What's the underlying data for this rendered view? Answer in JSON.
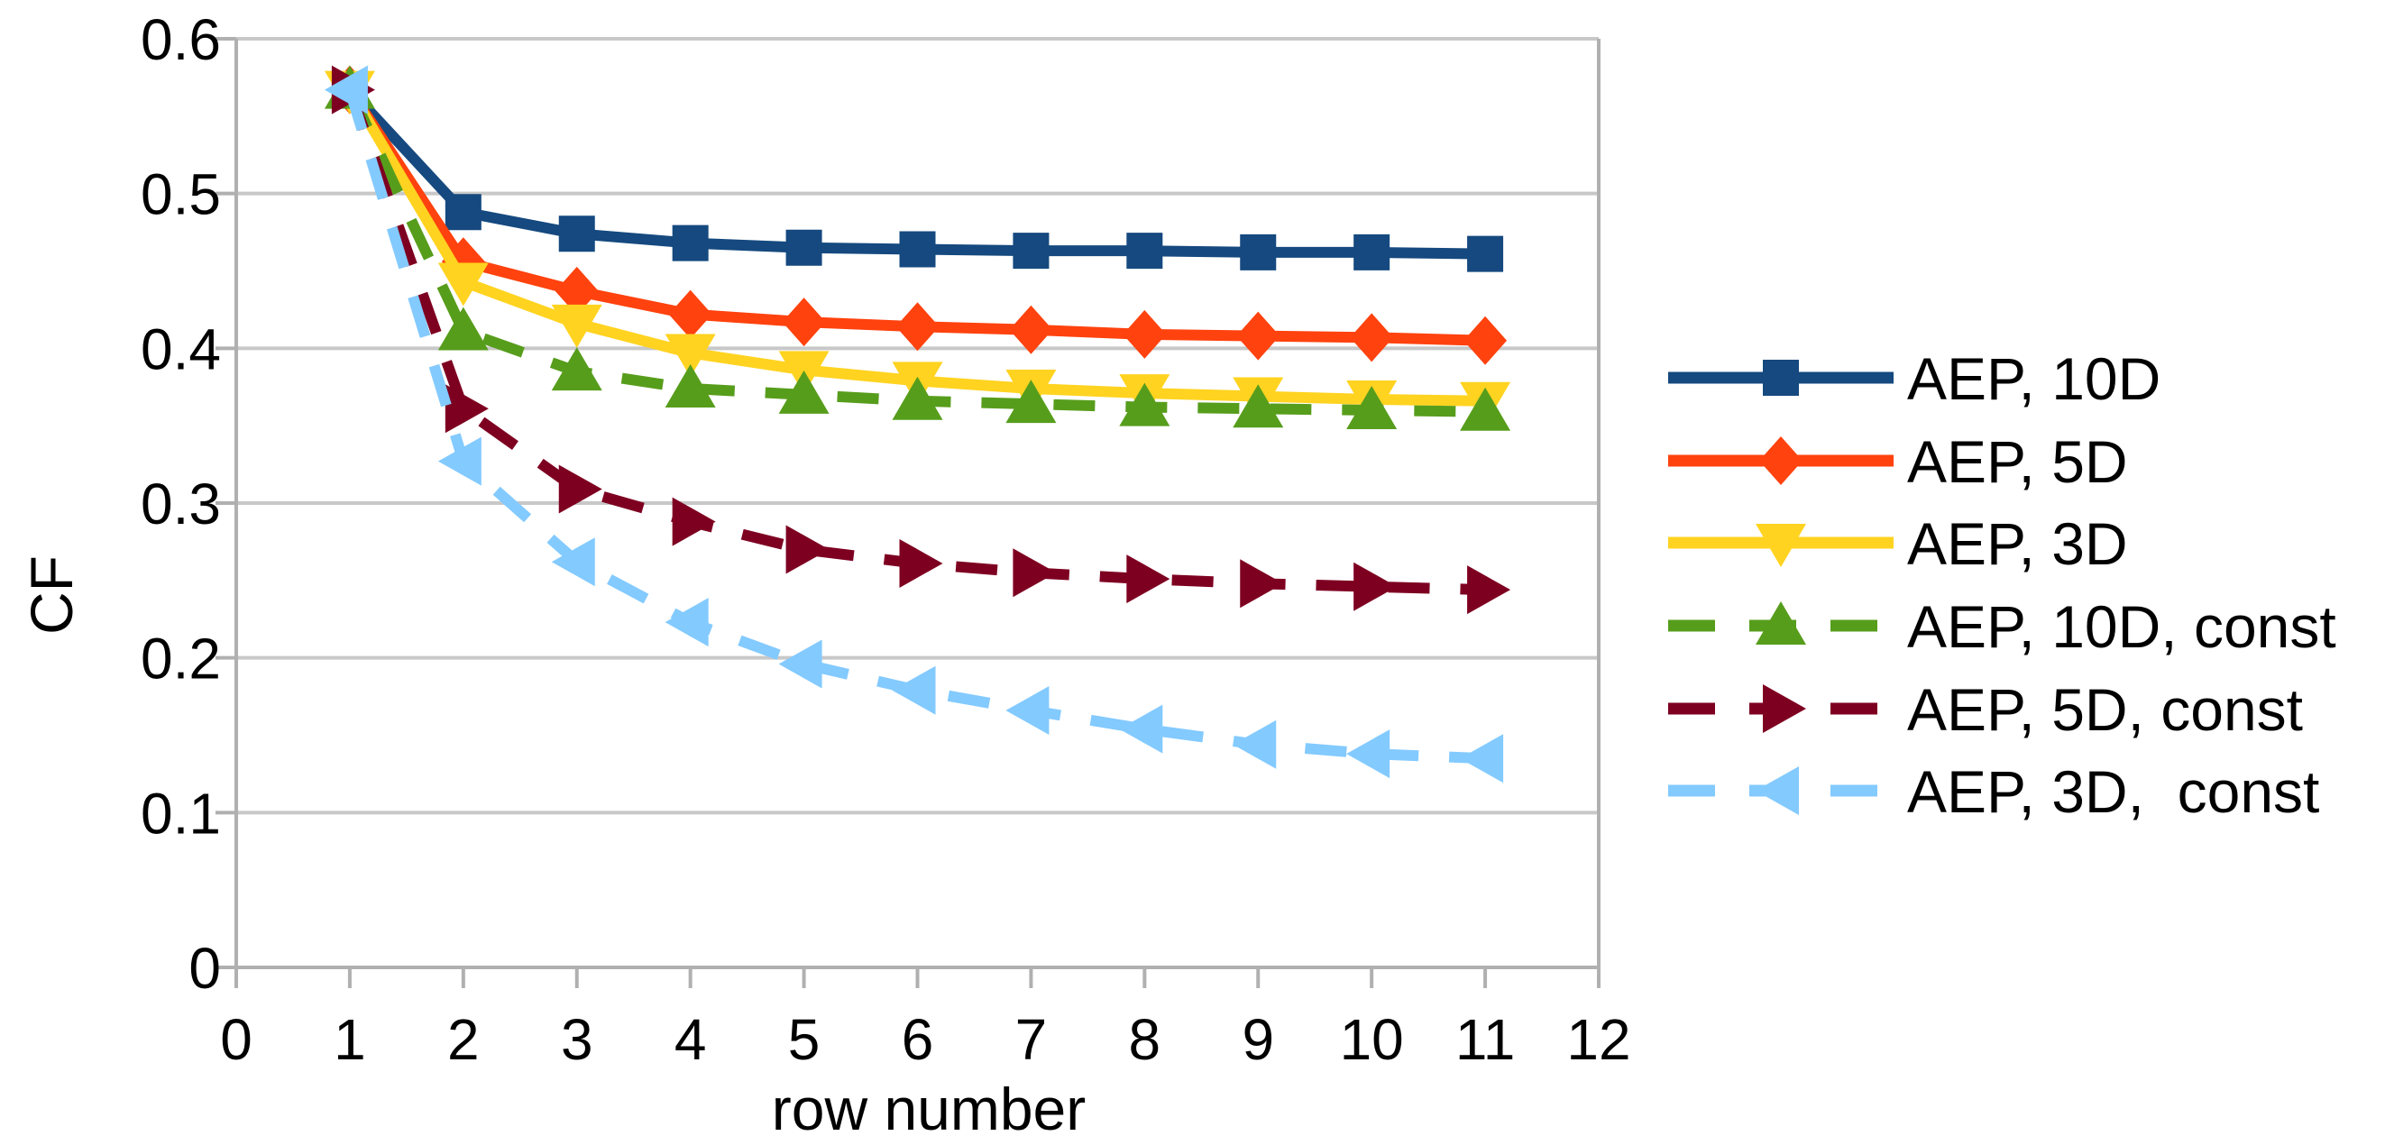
{
  "figure": {
    "background": "#ffffff",
    "text_color": "#000000",
    "axis_color": "#b0b0b0",
    "grid_color": "#c8c8c8"
  },
  "chart_data": {
    "type": "line",
    "title": "",
    "xlabel": "row number",
    "ylabel": "CF",
    "xlim": [
      0,
      12
    ],
    "ylim": [
      0,
      0.6
    ],
    "xticks": [
      "0",
      "1",
      "2",
      "3",
      "4",
      "5",
      "6",
      "7",
      "8",
      "9",
      "10",
      "11",
      "12"
    ],
    "yticks": [
      "0.6",
      "0.5",
      "0.4",
      "0.3",
      "0.2",
      "0.1",
      "0"
    ],
    "grid": "horizontal",
    "legend_position": "right-outside",
    "x": [
      1,
      2,
      3,
      4,
      5,
      6,
      7,
      8,
      9,
      10,
      11
    ],
    "series": [
      {
        "name": "AEP, 10D",
        "color": "#15497F",
        "marker": "square",
        "linestyle": "solid",
        "values": [
          0.567,
          0.488,
          0.474,
          0.468,
          0.465,
          0.464,
          0.463,
          0.463,
          0.462,
          0.462,
          0.461
        ]
      },
      {
        "name": "AEP, 5D",
        "color": "#FF420E",
        "marker": "diamond",
        "linestyle": "solid",
        "values": [
          0.567,
          0.456,
          0.437,
          0.422,
          0.417,
          0.414,
          0.412,
          0.409,
          0.408,
          0.407,
          0.405
        ]
      },
      {
        "name": "AEP, 3D",
        "color": "#FFD320",
        "marker": "triangle-down",
        "linestyle": "solid",
        "values": [
          0.567,
          0.443,
          0.416,
          0.397,
          0.386,
          0.379,
          0.374,
          0.371,
          0.369,
          0.367,
          0.366
        ]
      },
      {
        "name": "AEP, 10D, const",
        "color": "#579D1C",
        "marker": "triangle-up",
        "linestyle": "dashed",
        "values": [
          0.567,
          0.411,
          0.385,
          0.374,
          0.37,
          0.366,
          0.364,
          0.362,
          0.361,
          0.36,
          0.359
        ]
      },
      {
        "name": "AEP, 5D, const",
        "color": "#7E0021",
        "marker": "triangle-right",
        "linestyle": "dashed",
        "values": [
          0.567,
          0.361,
          0.309,
          0.288,
          0.27,
          0.261,
          0.255,
          0.251,
          0.248,
          0.246,
          0.244
        ]
      },
      {
        "name": "AEP, 3D,  const",
        "color": "#83CAFF",
        "marker": "triangle-left",
        "linestyle": "dashed",
        "values": [
          0.567,
          0.327,
          0.262,
          0.223,
          0.196,
          0.179,
          0.166,
          0.154,
          0.144,
          0.138,
          0.135
        ]
      }
    ]
  }
}
